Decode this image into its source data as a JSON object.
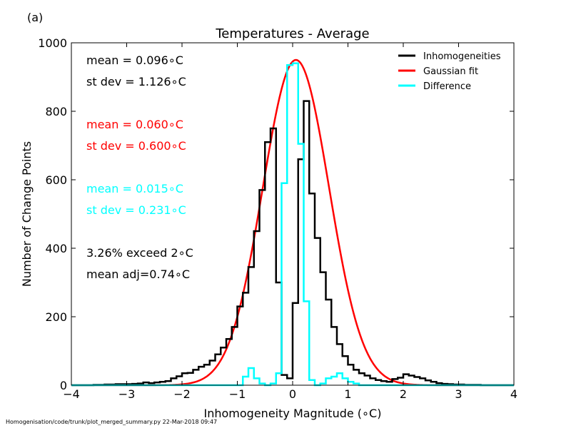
{
  "panel_label": "(a)",
  "footer": "Homogenisation/code/trunk/plot_merged_summary.py   22-Mar-2018 09:47",
  "stats": [
    {
      "text": "mean =  0.096$^∘$C",
      "display": "mean =  0.096∘C",
      "color": "#000000"
    },
    {
      "text": "st dev =  1.126$^∘$C",
      "display": "st dev =  1.126∘C",
      "color": "#000000"
    },
    {
      "text": "mean =  0.060$^∘$C",
      "display": "mean =  0.060∘C",
      "color": "#ff0000"
    },
    {
      "text": "st dev =  0.600$^∘$C",
      "display": "st dev =  0.600∘C",
      "color": "#ff0000"
    },
    {
      "text": "mean =  0.015$^∘$C",
      "display": "mean =  0.015∘C",
      "color": "#00ffff"
    },
    {
      "text": "st dev =  0.231$^∘$C",
      "display": "st dev =  0.231∘C",
      "color": "#00ffff"
    },
    {
      "text": "3.26% exceed 2$^∘$C",
      "display": "3.26% exceed 2∘C",
      "color": "#000000"
    },
    {
      "text": "mean adj=0.74$^∘$C",
      "display": "mean adj=0.74∘C",
      "color": "#000000"
    }
  ],
  "chart_data": {
    "type": "line",
    "title": "Temperatures - Average",
    "xlabel": "Inhomogeneity Magnitude (∘C)",
    "ylabel": "Number of Change Points",
    "xlim": [
      -4,
      4
    ],
    "ylim": [
      0,
      1000
    ],
    "xticks": [
      -4,
      -3,
      -2,
      -1,
      0,
      1,
      2,
      3,
      4
    ],
    "xtick_labels": [
      "−4",
      "−3",
      "−2",
      "−1",
      "0",
      "1",
      "2",
      "3",
      "4"
    ],
    "yticks": [
      0,
      200,
      400,
      600,
      800,
      1000
    ],
    "ytick_labels": [
      "0",
      "200",
      "400",
      "600",
      "800",
      "1000"
    ],
    "grid": false,
    "legend_position": "top-right",
    "bin_width": 0.1,
    "series": [
      {
        "name": "Inhomogeneities",
        "color": "#000000",
        "kind": "step",
        "bin_starts": [
          -4.0,
          -3.9,
          -3.8,
          -3.7,
          -3.6,
          -3.5,
          -3.4,
          -3.3,
          -3.2,
          -3.1,
          -3.0,
          -2.9,
          -2.8,
          -2.7,
          -2.6,
          -2.5,
          -2.4,
          -2.3,
          -2.2,
          -2.1,
          -2.0,
          -1.9,
          -1.8,
          -1.7,
          -1.6,
          -1.5,
          -1.4,
          -1.3,
          -1.2,
          -1.1,
          -1.0,
          -0.9,
          -0.8,
          -0.7,
          -0.6,
          -0.5,
          -0.4,
          -0.3,
          -0.2,
          -0.1,
          0.0,
          0.1,
          0.2,
          0.3,
          0.4,
          0.5,
          0.6,
          0.7,
          0.8,
          0.9,
          1.0,
          1.1,
          1.2,
          1.3,
          1.4,
          1.5,
          1.6,
          1.7,
          1.8,
          1.9,
          2.0,
          2.1,
          2.2,
          2.3,
          2.4,
          2.5,
          2.6,
          2.7,
          2.8,
          2.9,
          3.0,
          3.1,
          3.2,
          3.3,
          3.4,
          3.5,
          3.6,
          3.7,
          3.8,
          3.9
        ],
        "values": [
          0,
          0,
          0,
          0,
          1,
          1,
          2,
          2,
          3,
          3,
          3,
          4,
          5,
          8,
          6,
          8,
          10,
          12,
          20,
          26,
          35,
          36,
          45,
          54,
          60,
          72,
          90,
          110,
          135,
          170,
          230,
          270,
          345,
          450,
          570,
          710,
          750,
          300,
          30,
          20,
          240,
          660,
          830,
          560,
          430,
          330,
          250,
          170,
          120,
          85,
          60,
          45,
          35,
          28,
          20,
          15,
          12,
          10,
          18,
          22,
          32,
          28,
          24,
          20,
          14,
          10,
          6,
          4,
          3,
          2,
          2,
          1,
          1,
          1,
          0,
          0,
          0,
          0,
          0,
          0
        ]
      },
      {
        "name": "Gaussian fit",
        "color": "#ff0000",
        "kind": "gaussian",
        "mean": 0.06,
        "stdev": 0.6,
        "peak": 950
      },
      {
        "name": "Difference",
        "color": "#00ffff",
        "kind": "step",
        "bin_starts": [
          -4.0,
          -3.9,
          -3.8,
          -3.7,
          -3.6,
          -3.5,
          -3.4,
          -3.3,
          -3.2,
          -3.1,
          -3.0,
          -2.9,
          -2.8,
          -2.7,
          -2.6,
          -2.5,
          -2.4,
          -2.3,
          -2.2,
          -2.1,
          -2.0,
          -1.9,
          -1.8,
          -1.7,
          -1.6,
          -1.5,
          -1.4,
          -1.3,
          -1.2,
          -1.1,
          -1.0,
          -0.9,
          -0.8,
          -0.7,
          -0.6,
          -0.5,
          -0.4,
          -0.3,
          -0.2,
          -0.1,
          0.0,
          0.1,
          0.2,
          0.3,
          0.4,
          0.5,
          0.6,
          0.7,
          0.8,
          0.9,
          1.0,
          1.1,
          1.2,
          1.3,
          1.4,
          1.5,
          1.6,
          1.7,
          1.8,
          1.9,
          2.0,
          2.1,
          2.2,
          2.3,
          2.4,
          2.5,
          2.6,
          2.7,
          2.8,
          2.9,
          3.0,
          3.1,
          3.2,
          3.3,
          3.4,
          3.5,
          3.6,
          3.7,
          3.8,
          3.9
        ],
        "values": [
          0,
          0,
          0,
          0,
          0,
          0,
          0,
          0,
          0,
          0,
          0,
          0,
          0,
          0,
          0,
          0,
          0,
          0,
          0,
          0,
          0,
          0,
          0,
          0,
          0,
          0,
          0,
          0,
          0,
          0,
          0,
          25,
          50,
          20,
          5,
          0,
          5,
          35,
          590,
          935,
          940,
          705,
          245,
          15,
          0,
          5,
          20,
          25,
          35,
          20,
          10,
          5,
          0,
          0,
          0,
          0,
          0,
          0,
          0,
          0,
          0,
          0,
          0,
          0,
          0,
          0,
          0,
          0,
          0,
          0,
          0,
          0,
          0,
          0,
          0,
          0,
          0,
          0,
          0,
          0
        ]
      }
    ]
  }
}
